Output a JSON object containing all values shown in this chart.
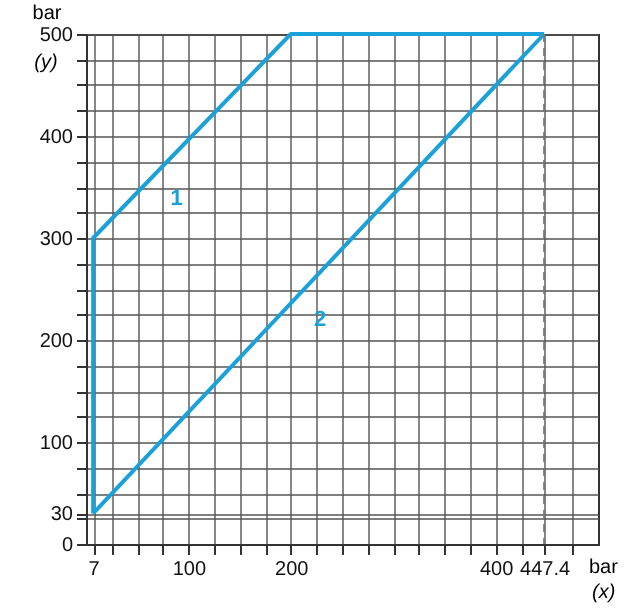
{
  "chart_data": {
    "type": "line",
    "xlabel": "bar",
    "ylabel": "bar",
    "annotations": [
      "(x)",
      "(y)"
    ],
    "xlim": [
      0,
      500
    ],
    "ylim": [
      0,
      500
    ],
    "xticks": [
      7,
      {
        "value": 25,
        "label": null
      },
      {
        "value": 50,
        "label": null
      },
      {
        "value": 75,
        "label": null
      },
      100,
      {
        "value": 125,
        "label": null
      },
      {
        "value": 150,
        "label": null
      },
      {
        "value": 175,
        "label": null
      },
      200,
      {
        "value": 225,
        "label": null
      },
      {
        "value": 250,
        "label": null
      },
      {
        "value": 275,
        "label": null
      },
      {
        "value": 300,
        "label": null
      },
      {
        "value": 325,
        "label": null
      },
      {
        "value": 350,
        "label": null
      },
      {
        "value": 375,
        "label": null
      },
      400,
      {
        "value": 425,
        "label": null
      },
      447.4,
      {
        "value": 475,
        "label": null
      }
    ],
    "yticks": [
      0,
      {
        "value": 25,
        "label": null
      },
      30,
      {
        "value": 50,
        "label": null
      },
      {
        "value": 75,
        "label": null
      },
      100,
      {
        "value": 125,
        "label": null
      },
      {
        "value": 150,
        "label": null
      },
      {
        "value": 175,
        "label": null
      },
      200,
      {
        "value": 225,
        "label": null
      },
      {
        "value": 250,
        "label": null
      },
      {
        "value": 275,
        "label": null
      },
      300,
      {
        "value": 325,
        "label": null
      },
      {
        "value": 350,
        "label": null
      },
      {
        "value": 375,
        "label": null
      },
      400,
      {
        "value": 425,
        "label": null
      },
      {
        "value": 450,
        "label": null
      },
      {
        "value": 475,
        "label": null
      },
      500
    ],
    "grid": true,
    "marker": "none",
    "line_style": "solid",
    "ref_lines": [
      {
        "axis": "x",
        "value": 447.4,
        "color": "#777777",
        "line_style": "dashed"
      }
    ],
    "series": [
      {
        "name": "1",
        "color": "#1ba1d9",
        "x": [
          7,
          7,
          200,
          447.4
        ],
        "values": [
          30,
          300,
          500,
          500
        ]
      },
      {
        "name": "2",
        "color": "#1ba1d9",
        "x": [
          7,
          447.4
        ],
        "values": [
          30,
          500
        ]
      }
    ]
  }
}
